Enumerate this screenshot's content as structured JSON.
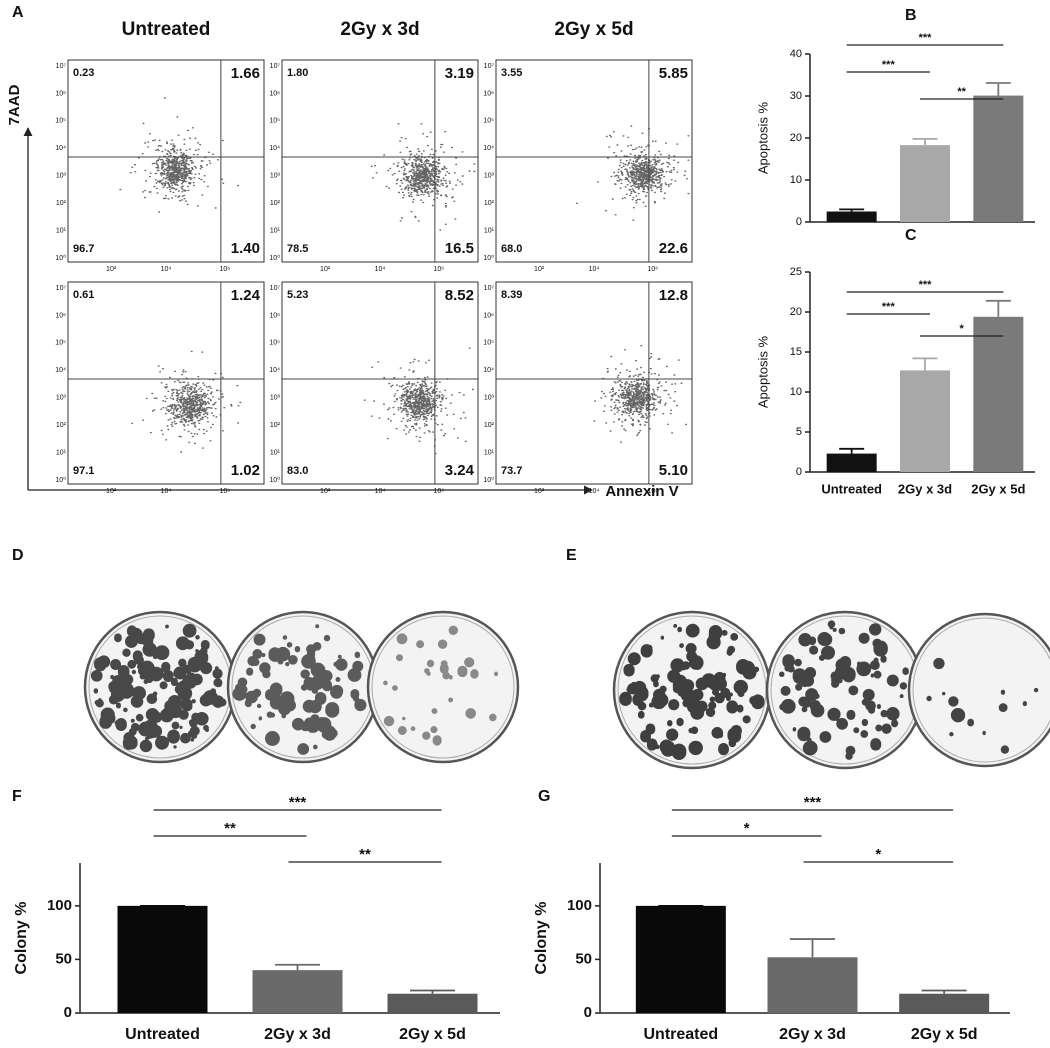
{
  "flow_cytometry": {
    "label": "A",
    "x_label": "Annexin V",
    "y_label": "7AAD",
    "columns": [
      "Untreated",
      "2Gy x 3d",
      "2Gy x 5d"
    ],
    "xticks": [
      "10²",
      "10⁴",
      "10⁶"
    ],
    "yticks": [
      "10⁰",
      "10¹",
      "10²",
      "10³",
      "10⁴",
      "10⁵",
      "10⁶",
      "10⁷"
    ],
    "rows": [
      [
        {
          "ul": "0.23",
          "ur": "1.66",
          "ll": "96.7",
          "lr": "1.40"
        },
        {
          "ul": "1.80",
          "ur": "3.19",
          "ll": "78.5",
          "lr": "16.5"
        },
        {
          "ul": "3.55",
          "ur": "5.85",
          "ll": "68.0",
          "lr": "22.6"
        }
      ],
      [
        {
          "ul": "0.61",
          "ur": "1.24",
          "ll": "97.1",
          "lr": "1.02"
        },
        {
          "ul": "5.23",
          "ur": "8.52",
          "ll": "83.0",
          "lr": "3.24"
        },
        {
          "ul": "8.39",
          "ur": "12.8",
          "ll": "73.7",
          "lr": "5.10"
        }
      ]
    ]
  },
  "clonogenic": [
    {
      "label": "D"
    },
    {
      "label": "E"
    }
  ],
  "chart_data": [
    {
      "type": "bar",
      "label": "B",
      "ylabel": "Apoptosis %",
      "categories": [
        null,
        null,
        null
      ],
      "values": [
        2.5,
        18.3,
        30.1
      ],
      "errors": [
        0.5,
        1.5,
        3.0
      ],
      "colors": [
        "#111111",
        "#a8a8a8",
        "#7a7a7a"
      ],
      "ylim": [
        0,
        40
      ],
      "yticks": [
        0,
        10,
        20,
        30,
        40
      ],
      "significance": [
        {
          "from": 0,
          "to": 2,
          "label": "***"
        },
        {
          "from": 0,
          "to": 1,
          "label": "***"
        },
        {
          "from": 1,
          "to": 2,
          "label": "**"
        }
      ]
    },
    {
      "type": "bar",
      "label": "C",
      "ylabel": "Apoptosis %",
      "categories": [
        "Untreated",
        "2Gy x 3d",
        "2Gy x 5d"
      ],
      "values": [
        2.3,
        12.7,
        19.4
      ],
      "errors": [
        0.6,
        1.5,
        2.0
      ],
      "colors": [
        "#111111",
        "#a8a8a8",
        "#7a7a7a"
      ],
      "ylim": [
        0,
        25
      ],
      "yticks": [
        0,
        5,
        10,
        15,
        20,
        25
      ],
      "significance": [
        {
          "from": 0,
          "to": 2,
          "label": "***"
        },
        {
          "from": 0,
          "to": 1,
          "label": "***"
        },
        {
          "from": 1,
          "to": 2,
          "label": "*"
        }
      ]
    },
    {
      "type": "bar",
      "label": "F",
      "ylabel": "Colony %",
      "categories": [
        "Untreated",
        "2Gy x 3d",
        "2Gy x 5d"
      ],
      "values": [
        100,
        40,
        18
      ],
      "errors": [
        0,
        5,
        3
      ],
      "colors": [
        "#0a0a0a",
        "#6a6a6a",
        "#5a5a5a"
      ],
      "ylim": [
        0,
        140
      ],
      "yticks": [
        0,
        50,
        100
      ],
      "significance": [
        {
          "from": 0,
          "to": 2,
          "label": "***"
        },
        {
          "from": 0,
          "to": 1,
          "label": "**"
        },
        {
          "from": 1,
          "to": 2,
          "label": "**"
        }
      ]
    },
    {
      "type": "bar",
      "label": "G",
      "ylabel": "Colony %",
      "categories": [
        "Untreated",
        "2Gy x 3d",
        "2Gy x 5d"
      ],
      "values": [
        100,
        52,
        18
      ],
      "errors": [
        0,
        17,
        3
      ],
      "colors": [
        "#0a0a0a",
        "#6a6a6a",
        "#5a5a5a"
      ],
      "ylim": [
        0,
        140
      ],
      "yticks": [
        0,
        50,
        100
      ],
      "significance": [
        {
          "from": 0,
          "to": 2,
          "label": "***"
        },
        {
          "from": 0,
          "to": 1,
          "label": "*"
        },
        {
          "from": 1,
          "to": 2,
          "label": "*"
        }
      ]
    }
  ]
}
